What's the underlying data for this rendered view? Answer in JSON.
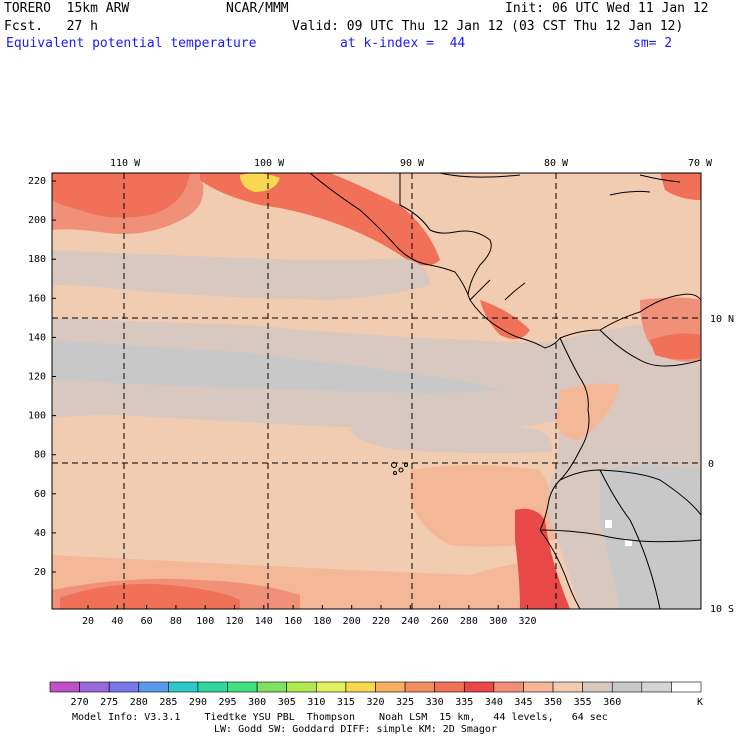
{
  "header": {
    "model": "TORERO  15km ARW",
    "center": "NCAR/MMM",
    "init": "Init: 06 UTC Wed 11 Jan 12",
    "fcst": "Fcst.   27 h",
    "valid": "Valid: 09 UTC Thu 12 Jan 12 (03 CST Thu 12 Jan 12)",
    "field": "Equivalent potential temperature",
    "kindex": "at k-index =  44",
    "smooth": "sm= 2"
  },
  "map": {
    "lon_labels": [
      "110 W",
      "100 W",
      "90 W",
      "80 W",
      "70 W"
    ],
    "lat_labels": [
      "10 N",
      "0",
      "10 S"
    ],
    "x_ticks": [
      "20",
      "40",
      "60",
      "80",
      "100",
      "120",
      "140",
      "160",
      "180",
      "200",
      "220",
      "240",
      "260",
      "280",
      "300",
      "320"
    ],
    "y_ticks": [
      "220",
      "200",
      "180",
      "160",
      "140",
      "120",
      "100",
      "80",
      "60",
      "40",
      "20"
    ]
  },
  "colorbar": {
    "colors": [
      "#c050c8",
      "#9a6ad8",
      "#7878e8",
      "#5a9ae8",
      "#30c8c8",
      "#30d8a0",
      "#40e080",
      "#80e060",
      "#b0e850",
      "#e0f060",
      "#f8d850",
      "#f8b060",
      "#f09060",
      "#f07058",
      "#e84848",
      "#f09078",
      "#f4b898",
      "#f2ccb0",
      "#d8c8c0",
      "#c8c8c8",
      "#d4d4d4",
      "#ffffff"
    ],
    "labels": [
      "270",
      "275",
      "280",
      "285",
      "290",
      "295",
      "300",
      "305",
      "310",
      "315",
      "320",
      "325",
      "330",
      "335",
      "340",
      "345",
      "350",
      "355",
      "360"
    ],
    "unit": "K"
  },
  "footer": {
    "line1": "Model Info: V3.3.1    Tiedtke YSU PBL  Thompson    Noah LSM  15 km,   44 levels,   64 sec",
    "line2": "LW: Godd SW: Goddard DIFF: simple KM: 2D Smagor"
  }
}
